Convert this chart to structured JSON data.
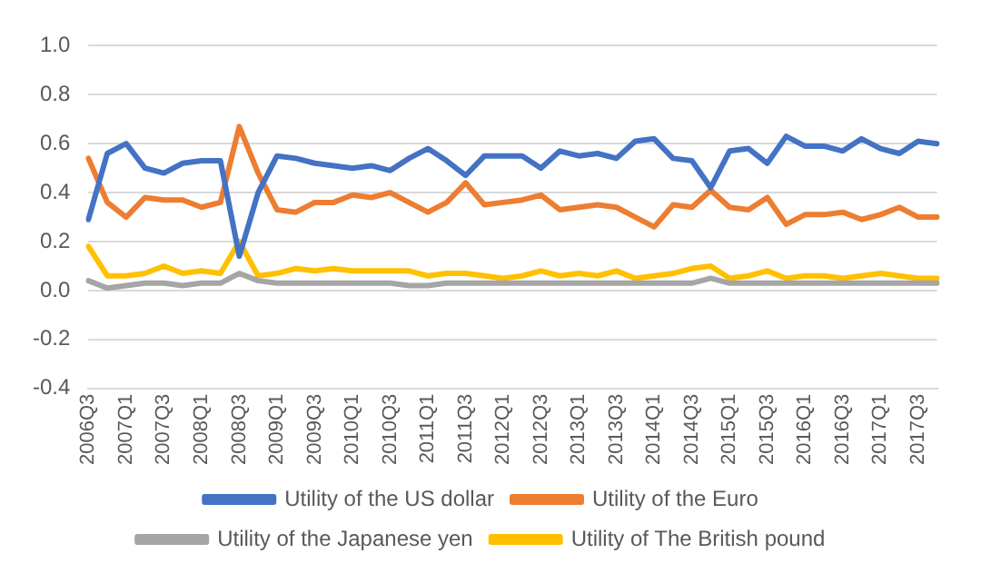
{
  "chart_data": {
    "type": "line",
    "categories": [
      "2006Q3",
      null,
      "2007Q1",
      null,
      "2007Q3",
      null,
      "2008Q1",
      null,
      "2008Q3",
      null,
      "2009Q1",
      null,
      "2009Q3",
      null,
      "2010Q1",
      null,
      "2010Q3",
      null,
      "2011Q1",
      null,
      "2011Q3",
      null,
      "2012Q1",
      null,
      "2012Q3",
      null,
      "2013Q1",
      null,
      "2013Q3",
      null,
      "2014Q1",
      null,
      "2014Q3",
      null,
      "2015Q1",
      null,
      "2015Q3",
      null,
      "2016Q1",
      null,
      "2016Q3",
      null,
      "2017Q1",
      null,
      "2017Q3",
      null
    ],
    "series": [
      {
        "name": "Utility of the US dollar",
        "color": "#4472c4",
        "values": [
          0.29,
          0.56,
          0.6,
          0.5,
          0.48,
          0.52,
          0.53,
          0.53,
          0.14,
          0.4,
          0.55,
          0.54,
          0.52,
          0.51,
          0.5,
          0.51,
          0.49,
          0.54,
          0.58,
          0.53,
          0.47,
          0.55,
          0.55,
          0.55,
          0.5,
          0.57,
          0.55,
          0.56,
          0.54,
          0.61,
          0.62,
          0.54,
          0.53,
          0.42,
          0.57,
          0.58,
          0.52,
          0.63,
          0.59,
          0.59,
          0.57,
          0.62,
          0.58,
          0.56,
          0.61,
          0.6
        ]
      },
      {
        "name": "Utility of the Euro",
        "color": "#ed7d31",
        "values": [
          0.54,
          0.36,
          0.3,
          0.38,
          0.37,
          0.37,
          0.34,
          0.36,
          0.67,
          0.48,
          0.33,
          0.32,
          0.36,
          0.36,
          0.39,
          0.38,
          0.4,
          0.36,
          0.32,
          0.36,
          0.44,
          0.35,
          0.36,
          0.37,
          0.39,
          0.33,
          0.34,
          0.35,
          0.34,
          0.3,
          0.26,
          0.35,
          0.34,
          0.41,
          0.34,
          0.33,
          0.38,
          0.27,
          0.31,
          0.31,
          0.32,
          0.29,
          0.31,
          0.34,
          0.3,
          0.3
        ]
      },
      {
        "name": "Utility of the Japanese yen",
        "color": "#a5a5a5",
        "values": [
          0.04,
          0.01,
          0.02,
          0.03,
          0.03,
          0.02,
          0.03,
          0.03,
          0.07,
          0.04,
          0.03,
          0.03,
          0.03,
          0.03,
          0.03,
          0.03,
          0.03,
          0.02,
          0.02,
          0.03,
          0.03,
          0.03,
          0.03,
          0.03,
          0.03,
          0.03,
          0.03,
          0.03,
          0.03,
          0.03,
          0.03,
          0.03,
          0.03,
          0.05,
          0.03,
          0.03,
          0.03,
          0.03,
          0.03,
          0.03,
          0.03,
          0.03,
          0.03,
          0.03,
          0.03,
          0.03
        ]
      },
      {
        "name": "Utility of The British pound",
        "color": "#ffc000",
        "values": [
          0.18,
          0.06,
          0.06,
          0.07,
          0.1,
          0.07,
          0.08,
          0.07,
          0.2,
          0.06,
          0.07,
          0.09,
          0.08,
          0.09,
          0.08,
          0.08,
          0.08,
          0.08,
          0.06,
          0.07,
          0.07,
          0.06,
          0.05,
          0.06,
          0.08,
          0.06,
          0.07,
          0.06,
          0.08,
          0.05,
          0.06,
          0.07,
          0.09,
          0.1,
          0.05,
          0.06,
          0.08,
          0.05,
          0.06,
          0.06,
          0.05,
          0.06,
          0.07,
          0.06,
          0.05,
          0.05
        ]
      }
    ],
    "ylim": [
      -0.4,
      1.0
    ],
    "yticks": [
      {
        "value": -0.4,
        "label": "-0.4"
      },
      {
        "value": -0.2,
        "label": "-0.2"
      },
      {
        "value": 0,
        "label": "0.0"
      },
      {
        "value": 0.2,
        "label": "0.2"
      },
      {
        "value": 0.4,
        "label": "0.4"
      },
      {
        "value": 0.6,
        "label": "0.6"
      },
      {
        "value": 0.8,
        "label": "0.8"
      },
      {
        "value": 1.0,
        "label": "1.0"
      }
    ],
    "grid": "y",
    "legend": "bottom",
    "marker": "none",
    "line_style": "solid"
  }
}
